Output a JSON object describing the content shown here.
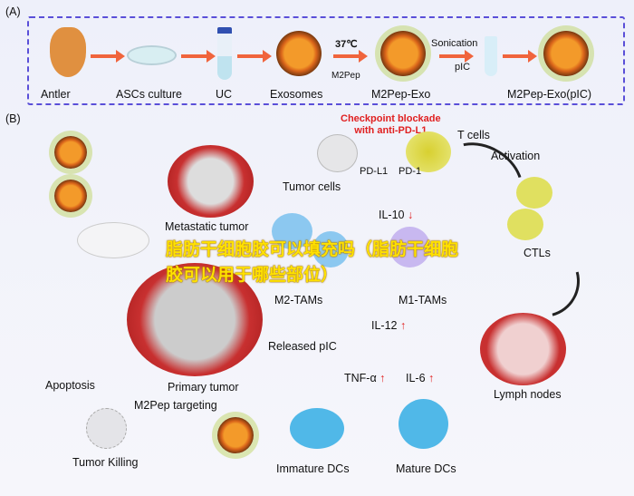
{
  "panel_a": {
    "label": "(A)",
    "steps": [
      "Antler",
      "ASCs culture",
      "UC",
      "Exosomes",
      "M2Pep-Exo",
      "M2Pep-Exo(pIC)"
    ],
    "temp": "37℃",
    "m2pep": "M2Pep",
    "sonication": "Sonication",
    "pic": "pIC"
  },
  "panel_b": {
    "label": "(B)",
    "checkpoint": "Checkpoint blockade\nwith anti-PD-L1",
    "t_cells": "T cells",
    "pd_l1": "PD-L1",
    "pd_1": "PD-1",
    "tumor_cells": "Tumor cells",
    "metastatic_tumor": "Metastatic tumor",
    "activation": "Activation",
    "il10": "IL-10",
    "m2_tams": "M2-TAMs",
    "m1_tams": "M1-TAMs",
    "ctls": "CTLs",
    "il12": "IL-12",
    "released_pic": "Released pIC",
    "tnf": "TNF-α",
    "il6": "IL-6",
    "primary_tumor": "Primary tumor",
    "apoptosis": "Apoptosis",
    "m2pep_targeting": "M2Pep targeting",
    "tumor_killing": "Tumor Killing",
    "immature_dcs": "Immature DCs",
    "mature_dcs": "Mature DCs",
    "lymph_nodes": "Lymph nodes",
    "up_arrow": "↑",
    "down_arrow": "↓"
  },
  "overlay_text": "脂肪干细胞胶可以填充吗（脂肪干细胞胶可以用于哪些部位）",
  "colors": {
    "border": "#5a4fd8",
    "arrow": "#f0643c",
    "overlay": "#ffe100",
    "accent_red": "#e02020"
  }
}
